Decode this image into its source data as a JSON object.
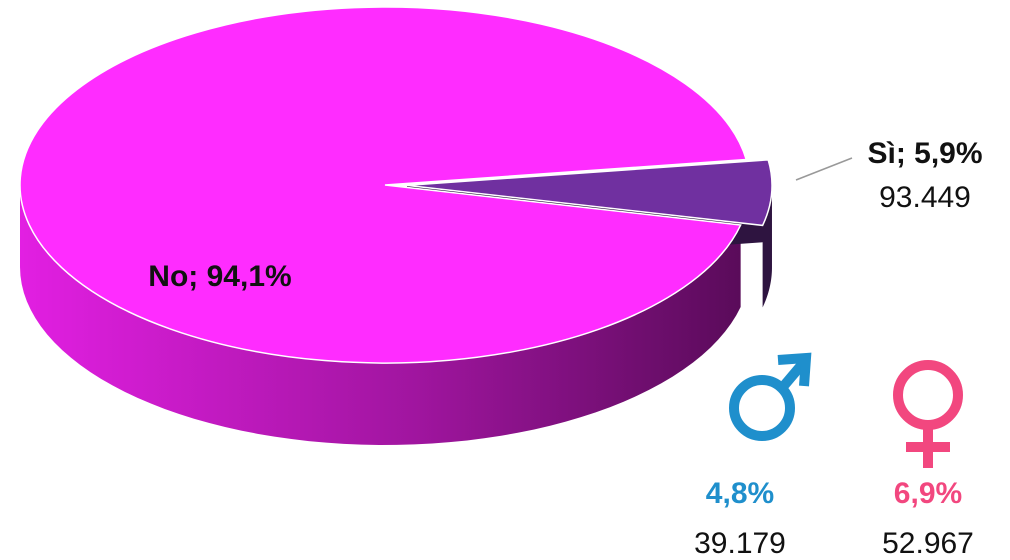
{
  "chart_data": {
    "type": "pie3d",
    "categories": [
      "No",
      "Sì"
    ],
    "values": [
      94.1,
      5.9
    ],
    "value_labels": [
      "No; 94,1%",
      "Sì; 5,9%"
    ],
    "colors": [
      "#ff2cff",
      "#7030a0"
    ],
    "side_colors": [
      "#8a0f8a",
      "#2e1440"
    ],
    "explode": [
      0,
      1
    ],
    "annotations": [
      {
        "value": 93449,
        "label": "93.449"
      }
    ],
    "gender": [
      {
        "percent": 4.8,
        "percent_label": "4,8%",
        "count": 39179,
        "count_label": "39.179",
        "color": "#1f8fcc"
      },
      {
        "percent": 6.9,
        "percent_label": "6,9%",
        "count": 52967,
        "count_label": "52.967",
        "color": "#f2477f"
      }
    ]
  }
}
